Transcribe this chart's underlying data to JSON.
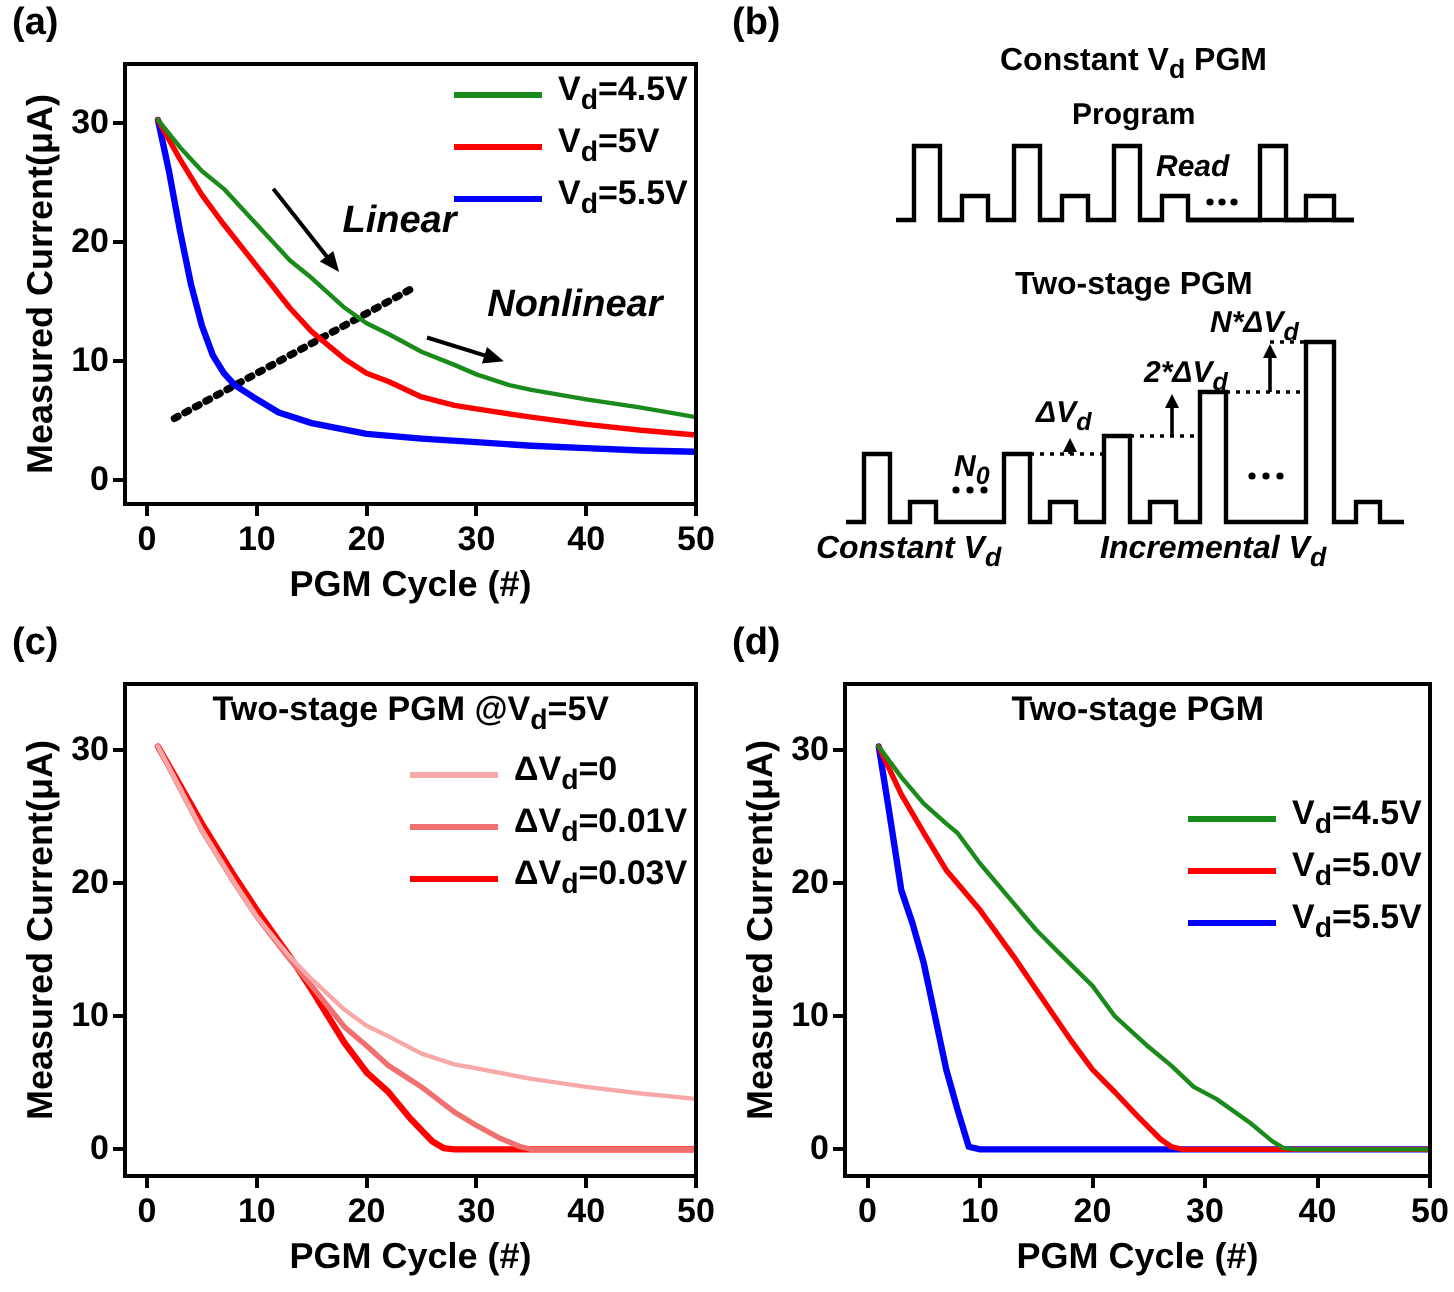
{
  "chart_data": [
    {
      "type": "line",
      "xlabel": "PGM Cycle (#)",
      "ylabel": "Measured Current(μA)",
      "xlim": [
        -2,
        50
      ],
      "ylim": [
        -2,
        35
      ],
      "xticks": [
        0,
        10,
        20,
        30,
        40,
        50
      ],
      "yticks": [
        0,
        10,
        20,
        30
      ],
      "grid": false,
      "legend": "top right",
      "annotations": [
        "(a)",
        "Linear",
        "Nonlinear"
      ],
      "series": [
        {
          "name": "V$_{d}$=4.5V",
          "color": "#1a8a1a",
          "x": [
            1,
            3,
            5,
            7,
            10,
            13,
            15,
            18,
            20,
            22,
            25,
            28,
            30,
            33,
            35,
            40,
            45,
            50
          ],
          "values": [
            30.3,
            28,
            26,
            24.5,
            21.5,
            18.5,
            17,
            14.5,
            13.2,
            12.3,
            10.8,
            9.7,
            8.9,
            8,
            7.6,
            6.8,
            6.1,
            5.3
          ]
        },
        {
          "name": "V$_{d}$=5V",
          "color": "#ff0000",
          "x": [
            1,
            3,
            5,
            7,
            10,
            13,
            15,
            18,
            20,
            22,
            25,
            28,
            30,
            35,
            40,
            45,
            50
          ],
          "values": [
            30.3,
            27,
            24,
            21.5,
            18,
            14.5,
            12.5,
            10.2,
            9,
            8.3,
            7,
            6.3,
            6,
            5.3,
            4.7,
            4.2,
            3.8
          ]
        },
        {
          "name": "V$_{d}$=5.5V",
          "color": "#0000ff",
          "x": [
            1,
            2,
            3,
            4,
            5,
            6,
            7,
            8,
            10,
            12,
            15,
            20,
            25,
            30,
            35,
            40,
            45,
            50
          ],
          "values": [
            30.3,
            26,
            21,
            16.5,
            13,
            10.5,
            9,
            8,
            6.8,
            5.7,
            4.8,
            3.9,
            3.5,
            3.2,
            2.9,
            2.7,
            2.5,
            2.4
          ]
        },
        {
          "color": "#000000",
          "line_style": "dotted",
          "x": [
            2.5,
            24.5
          ],
          "values": [
            5.2,
            16.3
          ]
        }
      ]
    },
    {
      "type": "other",
      "title": "Constant V$_{d}$ PGM",
      "annotations": [
        "(b)",
        "Program",
        "Read",
        "Two-stage PGM",
        "N$_{0}$",
        "ΔV$_{d}$",
        "2*ΔV$_{d}$",
        "N*ΔV$_{d}$",
        "Constant V$_{d}$",
        "Incremental V$_{d}$"
      ]
    },
    {
      "type": "line",
      "title": "Two-stage PGM @V$_{d}$=5V",
      "xlabel": "PGM Cycle (#)",
      "ylabel": "Measured Current(μA)",
      "xlim": [
        -2,
        50
      ],
      "ylim": [
        -2,
        35
      ],
      "xticks": [
        0,
        10,
        20,
        30,
        40,
        50
      ],
      "yticks": [
        0,
        10,
        20,
        30
      ],
      "grid": false,
      "legend": "top right",
      "annotations": [
        "(c)"
      ],
      "series": [
        {
          "name": "ΔV$_{d}$=0",
          "color": "#f7a8a8",
          "x": [
            1,
            5,
            8,
            10,
            13,
            15,
            18,
            20,
            22,
            25,
            28,
            30,
            35,
            40,
            45,
            50
          ],
          "values": [
            30.3,
            24,
            20,
            17.5,
            14.5,
            12.8,
            10.5,
            9.3,
            8.5,
            7.2,
            6.4,
            6.1,
            5.3,
            4.7,
            4.2,
            3.8
          ]
        },
        {
          "name": "ΔV$_{d}$=0.01V",
          "color": "#f07070",
          "x": [
            1,
            5,
            8,
            10,
            13,
            15,
            18,
            20,
            22,
            25,
            28,
            30,
            32,
            34,
            35,
            50
          ],
          "values": [
            30.3,
            24,
            20,
            17.5,
            14.3,
            12.3,
            9.2,
            7.8,
            6.3,
            4.7,
            2.8,
            1.8,
            0.9,
            0.2,
            0,
            0
          ]
        },
        {
          "name": "ΔV$_{d}$=0.03V",
          "color": "#ff0000",
          "x": [
            1,
            5,
            8,
            10,
            13,
            15,
            18,
            20,
            22,
            24,
            26,
            27,
            28,
            50
          ],
          "values": [
            30.3,
            24.5,
            20.5,
            18,
            14.5,
            12,
            8,
            5.8,
            4.3,
            2.3,
            0.6,
            0.1,
            0,
            0
          ]
        }
      ]
    },
    {
      "type": "line",
      "title": "Two-stage PGM",
      "xlabel": "PGM Cycle (#)",
      "ylabel": "Measured Current(μA)",
      "xlim": [
        -2,
        50
      ],
      "ylim": [
        -2,
        35
      ],
      "xticks": [
        0,
        10,
        20,
        30,
        40,
        50
      ],
      "yticks": [
        0,
        10,
        20,
        30
      ],
      "grid": false,
      "legend": "right",
      "annotations": [
        "(d)"
      ],
      "series": [
        {
          "name": "V$_{d}$=4.5V",
          "color": "#1a8a1a",
          "x": [
            1,
            3,
            5,
            7,
            8,
            10,
            13,
            15,
            17,
            20,
            22,
            25,
            27,
            29,
            31,
            34,
            36,
            37,
            38,
            50
          ],
          "values": [
            30.3,
            28,
            26,
            24.5,
            23.8,
            21.5,
            18.5,
            16.5,
            14.8,
            12.3,
            10,
            7.7,
            6.3,
            4.7,
            3.8,
            2,
            0.6,
            0.1,
            0,
            0
          ]
        },
        {
          "name": "V$_{d}$=5.0V",
          "color": "#ff0000",
          "x": [
            1,
            3,
            5,
            7,
            10,
            13,
            15,
            18,
            20,
            22,
            24,
            26,
            27,
            28,
            50
          ],
          "values": [
            30.3,
            26.7,
            23.8,
            21,
            18,
            14.5,
            12,
            8.3,
            6,
            4.3,
            2.5,
            0.8,
            0.2,
            0,
            0
          ]
        },
        {
          "name": "V$_{d}$=5.5V",
          "color": "#0000ff",
          "x": [
            1,
            2,
            3,
            4,
            5,
            6,
            7,
            8,
            9,
            10,
            50
          ],
          "values": [
            30.3,
            25,
            19.5,
            17,
            14,
            10,
            6,
            3,
            0.2,
            0,
            0
          ]
        }
      ]
    }
  ]
}
